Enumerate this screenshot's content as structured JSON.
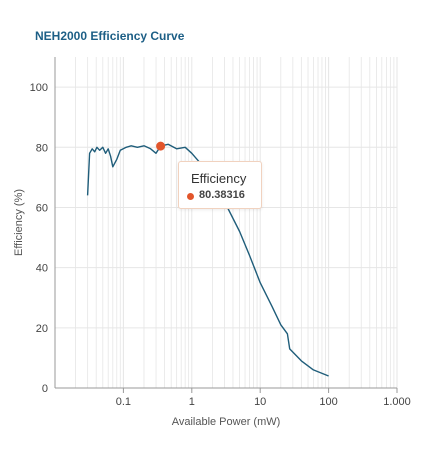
{
  "title": "NEH2000 Efficiency Curve",
  "colors": {
    "line": "#1f5d7a",
    "highlight": "#e2552b",
    "title": "#1d5f86",
    "grid": "#e6e6e6",
    "axis": "#999999"
  },
  "tooltip": {
    "title": "Efficiency",
    "value": "80.38316"
  },
  "chart_data": {
    "type": "line",
    "title": "NEH2000 Efficiency Curve",
    "xlabel": "Available Power (mW)",
    "ylabel": "Efficiency (%)",
    "x_scale": "log",
    "xlim": [
      0.01,
      1000
    ],
    "ylim": [
      0,
      110
    ],
    "x_ticks": [
      0.1,
      1,
      10,
      100,
      1000
    ],
    "x_tick_labels": [
      "0.1",
      "1",
      "10",
      "100",
      "1.000"
    ],
    "y_ticks": [
      0,
      20,
      40,
      60,
      80,
      100
    ],
    "y_tick_labels": [
      "0",
      "20",
      "40",
      "60",
      "80",
      "100"
    ],
    "grid": true,
    "legend": "none",
    "series": [
      {
        "points": [
          [
            0.03,
            64
          ],
          [
            0.032,
            78
          ],
          [
            0.035,
            79.5
          ],
          [
            0.038,
            78.5
          ],
          [
            0.041,
            80
          ],
          [
            0.045,
            79
          ],
          [
            0.05,
            80
          ],
          [
            0.055,
            78
          ],
          [
            0.06,
            79.5
          ],
          [
            0.065,
            77
          ],
          [
            0.07,
            73.5
          ],
          [
            0.08,
            76
          ],
          [
            0.09,
            79
          ],
          [
            0.11,
            80
          ],
          [
            0.13,
            80.5
          ],
          [
            0.16,
            80
          ],
          [
            0.2,
            80.5
          ],
          [
            0.25,
            79.5
          ],
          [
            0.3,
            78
          ],
          [
            0.35,
            80.38
          ],
          [
            0.45,
            81
          ],
          [
            0.6,
            79.5
          ],
          [
            0.8,
            80
          ],
          [
            1.0,
            78
          ],
          [
            1.3,
            75
          ],
          [
            2,
            70
          ],
          [
            3,
            62
          ],
          [
            5,
            52
          ],
          [
            7,
            44
          ],
          [
            10,
            35
          ],
          [
            15,
            27
          ],
          [
            20,
            21
          ],
          [
            25,
            18
          ],
          [
            27,
            13
          ],
          [
            40,
            9
          ],
          [
            60,
            6
          ],
          [
            100,
            4
          ]
        ]
      }
    ],
    "highlight_point": {
      "x": 0.35,
      "y": 80.38316
    }
  }
}
